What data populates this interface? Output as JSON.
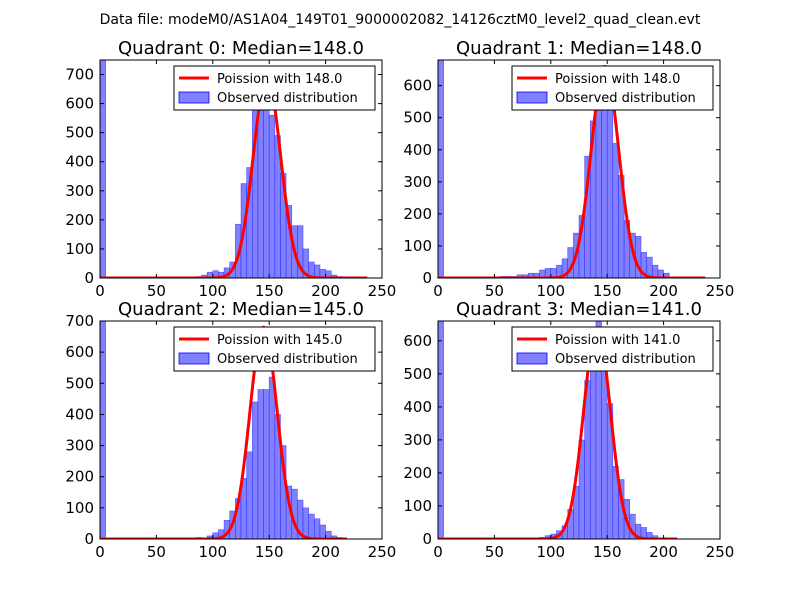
{
  "figure": {
    "suptitle": "Data file: modeM0/AS1A04_149T01_9000002082_14126cztM0_level2_quad_clean.evt"
  },
  "colors": {
    "bar_fill": "#8080ff",
    "bar_stroke": "#0000ff",
    "curve": "#ff0000",
    "axes": "#000000"
  },
  "chart_data": [
    {
      "type": "bar",
      "title": "Quadrant 0: Median=148.0",
      "median": 148.0,
      "xlim": [
        0,
        250
      ],
      "ylim": [
        0,
        750
      ],
      "xticks": [
        0,
        50,
        100,
        150,
        200,
        250
      ],
      "yticks": [
        0,
        100,
        200,
        300,
        400,
        500,
        600,
        700
      ],
      "legend": {
        "position": "top-right",
        "entries": [
          "Poission with 148.0",
          "Observed distribution"
        ]
      },
      "bins": [
        [
          0,
          5,
          750
        ],
        [
          85,
          90,
          5
        ],
        [
          90,
          95,
          10
        ],
        [
          95,
          100,
          20
        ],
        [
          100,
          105,
          25
        ],
        [
          105,
          110,
          20
        ],
        [
          110,
          115,
          35
        ],
        [
          115,
          120,
          55
        ],
        [
          120,
          125,
          185
        ],
        [
          125,
          130,
          325
        ],
        [
          130,
          135,
          380
        ],
        [
          135,
          140,
          660
        ],
        [
          140,
          145,
          690
        ],
        [
          145,
          150,
          640
        ],
        [
          150,
          155,
          560
        ],
        [
          155,
          160,
          490
        ],
        [
          160,
          165,
          360
        ],
        [
          165,
          170,
          250
        ],
        [
          170,
          175,
          180
        ],
        [
          175,
          180,
          180
        ],
        [
          180,
          185,
          100
        ],
        [
          185,
          190,
          55
        ],
        [
          190,
          195,
          45
        ],
        [
          195,
          200,
          30
        ],
        [
          200,
          205,
          25
        ],
        [
          205,
          210,
          10
        ],
        [
          210,
          215,
          5
        ]
      ],
      "curve": {
        "name": "Poission with 148.0",
        "peak": 690,
        "sigma": 12.2,
        "x_range": [
          0,
          237
        ]
      }
    },
    {
      "type": "bar",
      "title": "Quadrant 1: Median=148.0",
      "median": 148.0,
      "xlim": [
        0,
        250
      ],
      "ylim": [
        0,
        680
      ],
      "xticks": [
        0,
        50,
        100,
        150,
        200,
        250
      ],
      "yticks": [
        0,
        100,
        200,
        300,
        400,
        500,
        600
      ],
      "legend": {
        "position": "top-right",
        "entries": [
          "Poission with 148.0",
          "Observed distribution"
        ]
      },
      "bins": [
        [
          0,
          5,
          680
        ],
        [
          55,
          60,
          5
        ],
        [
          60,
          65,
          5
        ],
        [
          65,
          70,
          5
        ],
        [
          70,
          75,
          10
        ],
        [
          75,
          80,
          10
        ],
        [
          80,
          85,
          15
        ],
        [
          85,
          90,
          15
        ],
        [
          90,
          95,
          25
        ],
        [
          95,
          100,
          30
        ],
        [
          100,
          105,
          30
        ],
        [
          105,
          110,
          40
        ],
        [
          110,
          115,
          60
        ],
        [
          115,
          120,
          95
        ],
        [
          120,
          125,
          140
        ],
        [
          125,
          130,
          195
        ],
        [
          130,
          135,
          380
        ],
        [
          135,
          140,
          490
        ],
        [
          140,
          145,
          600
        ],
        [
          145,
          150,
          530
        ],
        [
          150,
          155,
          560
        ],
        [
          155,
          160,
          420
        ],
        [
          160,
          165,
          320
        ],
        [
          165,
          170,
          180
        ],
        [
          170,
          175,
          140
        ],
        [
          175,
          180,
          130
        ],
        [
          180,
          185,
          80
        ],
        [
          185,
          190,
          65
        ],
        [
          190,
          195,
          40
        ],
        [
          195,
          200,
          25
        ],
        [
          200,
          205,
          15
        ]
      ],
      "curve": {
        "name": "Poission with 148.0",
        "peak": 660,
        "sigma": 12.2,
        "x_range": [
          0,
          237
        ]
      }
    },
    {
      "type": "bar",
      "title": "Quadrant 2: Median=145.0",
      "median": 145.0,
      "xlim": [
        0,
        250
      ],
      "ylim": [
        0,
        700
      ],
      "xticks": [
        0,
        50,
        100,
        150,
        200,
        250
      ],
      "yticks": [
        0,
        100,
        200,
        300,
        400,
        500,
        600,
        700
      ],
      "legend": {
        "position": "top-right",
        "entries": [
          "Poission with 145.0",
          "Observed distribution"
        ]
      },
      "bins": [
        [
          0,
          5,
          700
        ],
        [
          85,
          90,
          5
        ],
        [
          95,
          100,
          10
        ],
        [
          100,
          105,
          20
        ],
        [
          105,
          110,
          30
        ],
        [
          110,
          115,
          60
        ],
        [
          115,
          120,
          90
        ],
        [
          120,
          125,
          130
        ],
        [
          125,
          130,
          195
        ],
        [
          130,
          135,
          280
        ],
        [
          135,
          140,
          440
        ],
        [
          140,
          145,
          480
        ],
        [
          145,
          150,
          480
        ],
        [
          150,
          155,
          520
        ],
        [
          155,
          160,
          400
        ],
        [
          160,
          165,
          300
        ],
        [
          165,
          170,
          170
        ],
        [
          170,
          175,
          160
        ],
        [
          175,
          180,
          125
        ],
        [
          180,
          185,
          100
        ],
        [
          185,
          190,
          80
        ],
        [
          190,
          195,
          65
        ],
        [
          195,
          200,
          45
        ],
        [
          200,
          205,
          25
        ],
        [
          205,
          210,
          10
        ],
        [
          210,
          215,
          5
        ]
      ],
      "curve": {
        "name": "Poission with 145.0",
        "peak": 680,
        "sigma": 12.0,
        "x_range": [
          0,
          219
        ]
      }
    },
    {
      "type": "bar",
      "title": "Quadrant 3: Median=141.0",
      "median": 141.0,
      "xlim": [
        0,
        250
      ],
      "ylim": [
        0,
        660
      ],
      "xticks": [
        0,
        50,
        100,
        150,
        200,
        250
      ],
      "yticks": [
        0,
        100,
        200,
        300,
        400,
        500,
        600
      ],
      "legend": {
        "position": "top-right",
        "entries": [
          "Poission with 141.0",
          "Observed distribution"
        ]
      },
      "bins": [
        [
          0,
          5,
          660
        ],
        [
          90,
          95,
          5
        ],
        [
          95,
          100,
          10
        ],
        [
          100,
          105,
          15
        ],
        [
          105,
          110,
          25
        ],
        [
          110,
          115,
          40
        ],
        [
          115,
          120,
          90
        ],
        [
          120,
          125,
          160
        ],
        [
          125,
          130,
          300
        ],
        [
          130,
          135,
          480
        ],
        [
          135,
          140,
          540
        ],
        [
          140,
          145,
          660
        ],
        [
          145,
          150,
          530
        ],
        [
          150,
          155,
          410
        ],
        [
          155,
          160,
          220
        ],
        [
          160,
          165,
          180
        ],
        [
          165,
          170,
          120
        ],
        [
          170,
          175,
          75
        ],
        [
          175,
          180,
          45
        ],
        [
          180,
          185,
          35
        ],
        [
          185,
          190,
          20
        ],
        [
          190,
          195,
          10
        ]
      ],
      "curve": {
        "name": "Poission with 141.0",
        "peak": 640,
        "sigma": 11.9,
        "x_range": [
          0,
          212
        ]
      }
    }
  ]
}
